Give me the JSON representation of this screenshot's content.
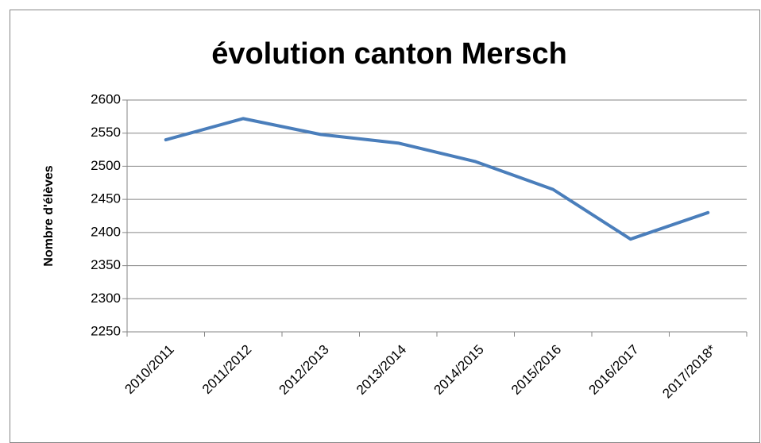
{
  "chart_data": {
    "type": "line",
    "title": "évolution canton Mersch",
    "y_label": "Nombre d'élèves",
    "categories": [
      "2010/2011",
      "2011/2012",
      "2012/2013",
      "2013/2014",
      "2014/2015",
      "2015/2016",
      "2016/2017",
      "2017/2018*"
    ],
    "series": [
      {
        "name": "Nombre d'élèves",
        "color": "#4a7ebb",
        "values": [
          2540,
          2572,
          2548,
          2535,
          2507,
          2465,
          2390,
          2430
        ]
      }
    ],
    "ylim": [
      2250,
      2600
    ],
    "yticks": [
      2250,
      2300,
      2350,
      2400,
      2450,
      2500,
      2550,
      2600
    ],
    "grid": true
  }
}
